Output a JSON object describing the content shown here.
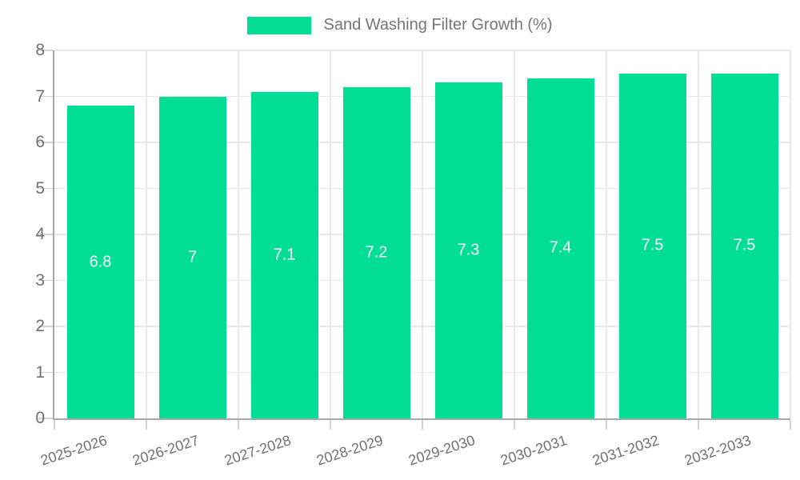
{
  "legend": {
    "label": "Sand Washing Filter Growth (%)"
  },
  "chart_data": {
    "type": "bar",
    "title": "Sand Washing Filter Growth (%)",
    "categories": [
      "2025-2026",
      "2026-2027",
      "2027-2028",
      "2028-2029",
      "2029-2030",
      "2030-2031",
      "2031-2032",
      "2032-2033"
    ],
    "values": [
      6.8,
      7,
      7.1,
      7.2,
      7.3,
      7.4,
      7.5,
      7.5
    ],
    "value_labels": [
      "6.8",
      "7",
      "7.1",
      "7.2",
      "7.3",
      "7.4",
      "7.5",
      "7.5"
    ],
    "xlabel": "",
    "ylabel": "",
    "ylim": [
      0,
      8
    ],
    "y_ticks": [
      0,
      1,
      2,
      3,
      4,
      5,
      6,
      7,
      8
    ],
    "grid": true,
    "legend_position": "top",
    "x_label_rotation_deg": -18,
    "colors": {
      "bar": "#00DE96",
      "bar_value_label": "#ffffff",
      "axis_text": "#707070",
      "legend_text": "#757575",
      "grid_line": "#e8e8e8",
      "axis_line": "#a8a8a8",
      "tick_mark": "#d2d2d2",
      "background": "#ffffff"
    }
  }
}
